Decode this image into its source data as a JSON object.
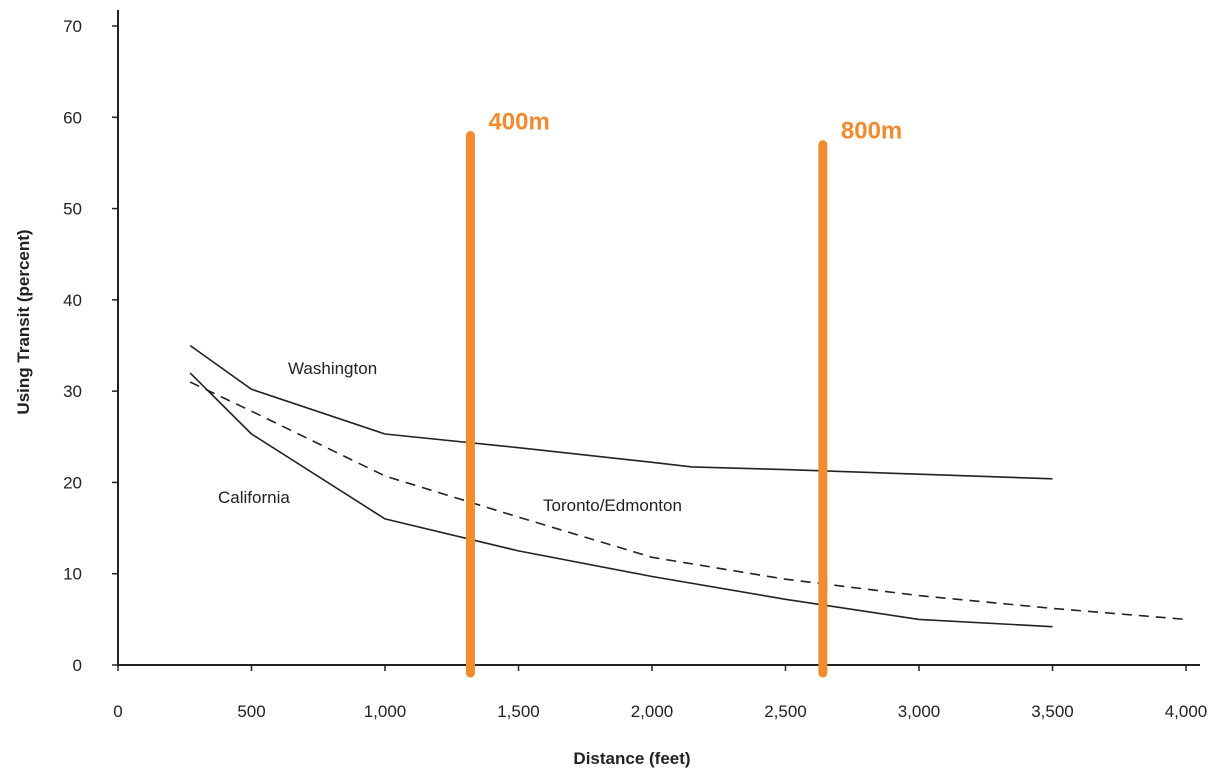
{
  "chart_data": {
    "type": "line",
    "title": "",
    "xlabel": "Distance (feet)",
    "ylabel": "Using Transit (percent)",
    "xlim": [
      0,
      4000
    ],
    "ylim": [
      0,
      70
    ],
    "x_ticks": [
      0,
      500,
      1000,
      1500,
      2000,
      2500,
      3000,
      3500,
      4000
    ],
    "x_tick_labels": [
      "0",
      "500",
      "1,000",
      "1,500",
      "2,000",
      "2,500",
      "3,000",
      "3,500",
      "4,000"
    ],
    "y_ticks": [
      0,
      10,
      20,
      30,
      40,
      50,
      60,
      70
    ],
    "y_tick_labels": [
      "0",
      "10",
      "20",
      "30",
      "40",
      "50",
      "60",
      "70"
    ],
    "grid": false,
    "series": [
      {
        "name": "Washington",
        "style": "solid",
        "points": [
          [
            270,
            35.0
          ],
          [
            500,
            30.2
          ],
          [
            1000,
            25.3
          ],
          [
            1500,
            23.8
          ],
          [
            2000,
            22.2
          ],
          [
            2150,
            21.7
          ],
          [
            2500,
            21.4
          ],
          [
            3000,
            20.9
          ],
          [
            3500,
            20.4
          ]
        ]
      },
      {
        "name": "California",
        "style": "solid",
        "points": [
          [
            270,
            32.0
          ],
          [
            500,
            25.3
          ],
          [
            1000,
            16.0
          ],
          [
            1500,
            12.5
          ],
          [
            2000,
            9.7
          ],
          [
            2500,
            7.2
          ],
          [
            3000,
            5.0
          ],
          [
            3500,
            4.2
          ]
        ]
      },
      {
        "name": "Toronto/Edmonton",
        "style": "dashed",
        "points": [
          [
            270,
            31.0
          ],
          [
            500,
            27.8
          ],
          [
            1000,
            20.7
          ],
          [
            1500,
            16.2
          ],
          [
            2000,
            11.8
          ],
          [
            2500,
            9.4
          ],
          [
            3000,
            7.6
          ],
          [
            3500,
            6.2
          ],
          [
            4000,
            5.0
          ]
        ]
      }
    ],
    "reference_lines": [
      {
        "label": "400m",
        "x": 1320,
        "y_top": 58
      },
      {
        "label": "800m",
        "x": 2640,
        "y_top": 57
      }
    ],
    "reference_color": "#F28A30",
    "line_color": "#222222"
  }
}
